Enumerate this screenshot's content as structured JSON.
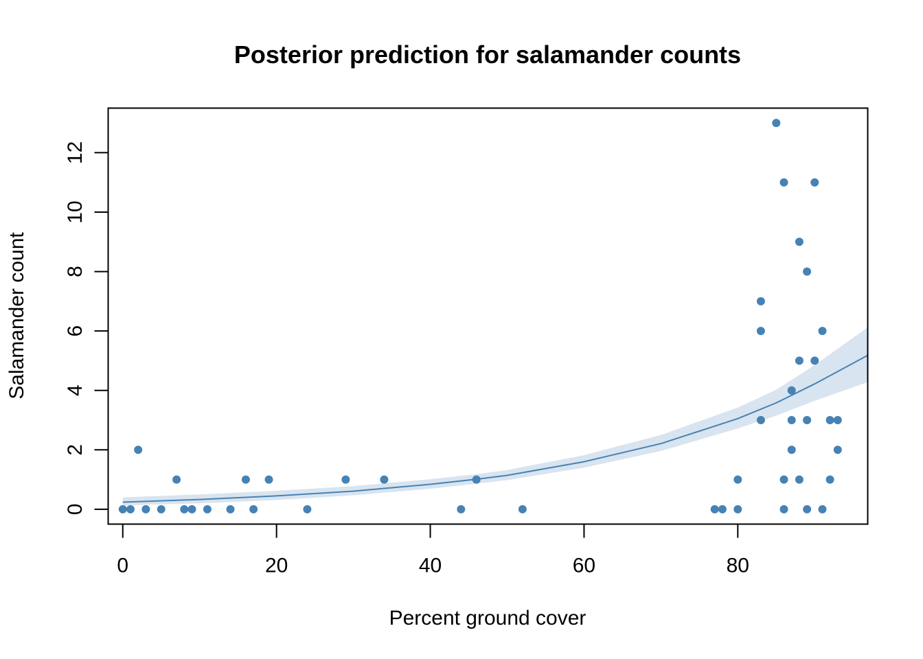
{
  "chart_data": {
    "type": "scatter",
    "title": "Posterior prediction for salamander counts",
    "xlabel": "Percent ground cover",
    "ylabel": "Salamander count",
    "xlim": [
      -1.9,
      96.9
    ],
    "ylim": [
      -0.5,
      13.5
    ],
    "xticks": [
      0,
      20,
      40,
      60,
      80
    ],
    "yticks": [
      0,
      2,
      4,
      6,
      8,
      10,
      12
    ],
    "grid": false,
    "colors": {
      "points": "#4682B4",
      "line": "#4682B4",
      "band": "#D8E4EF",
      "axes": "#000000"
    },
    "points": [
      {
        "x": 0,
        "y": 0
      },
      {
        "x": 1,
        "y": 0
      },
      {
        "x": 2,
        "y": 2
      },
      {
        "x": 3,
        "y": 0
      },
      {
        "x": 5,
        "y": 0
      },
      {
        "x": 7,
        "y": 1
      },
      {
        "x": 8,
        "y": 0
      },
      {
        "x": 9,
        "y": 0
      },
      {
        "x": 11,
        "y": 0
      },
      {
        "x": 14,
        "y": 0
      },
      {
        "x": 16,
        "y": 1
      },
      {
        "x": 17,
        "y": 0
      },
      {
        "x": 19,
        "y": 1
      },
      {
        "x": 24,
        "y": 0
      },
      {
        "x": 29,
        "y": 1
      },
      {
        "x": 34,
        "y": 1
      },
      {
        "x": 44,
        "y": 0
      },
      {
        "x": 46,
        "y": 1
      },
      {
        "x": 52,
        "y": 0
      },
      {
        "x": 77,
        "y": 0
      },
      {
        "x": 78,
        "y": 0
      },
      {
        "x": 80,
        "y": 1
      },
      {
        "x": 80,
        "y": 0
      },
      {
        "x": 83,
        "y": 7
      },
      {
        "x": 83,
        "y": 6
      },
      {
        "x": 83,
        "y": 3
      },
      {
        "x": 85,
        "y": 13
      },
      {
        "x": 86,
        "y": 11
      },
      {
        "x": 86,
        "y": 1
      },
      {
        "x": 86,
        "y": 0
      },
      {
        "x": 87,
        "y": 4
      },
      {
        "x": 87,
        "y": 3
      },
      {
        "x": 87,
        "y": 2
      },
      {
        "x": 88,
        "y": 9
      },
      {
        "x": 88,
        "y": 5
      },
      {
        "x": 88,
        "y": 1
      },
      {
        "x": 89,
        "y": 8
      },
      {
        "x": 89,
        "y": 3
      },
      {
        "x": 89,
        "y": 0
      },
      {
        "x": 90,
        "y": 11
      },
      {
        "x": 90,
        "y": 5
      },
      {
        "x": 91,
        "y": 6
      },
      {
        "x": 91,
        "y": 0
      },
      {
        "x": 92,
        "y": 3
      },
      {
        "x": 92,
        "y": 1
      },
      {
        "x": 93,
        "y": 3
      },
      {
        "x": 93,
        "y": 2
      }
    ],
    "curve": [
      {
        "x": 0,
        "mean": 0.24,
        "lower": 0.13,
        "upper": 0.4
      },
      {
        "x": 10,
        "mean": 0.33,
        "lower": 0.2,
        "upper": 0.5
      },
      {
        "x": 20,
        "mean": 0.45,
        "lower": 0.31,
        "upper": 0.62
      },
      {
        "x": 30,
        "mean": 0.61,
        "lower": 0.47,
        "upper": 0.78
      },
      {
        "x": 40,
        "mean": 0.84,
        "lower": 0.69,
        "upper": 1.01
      },
      {
        "x": 46,
        "mean": 1.01,
        "lower": 0.86,
        "upper": 1.18
      },
      {
        "x": 50,
        "mean": 1.14,
        "lower": 0.98,
        "upper": 1.32
      },
      {
        "x": 60,
        "mean": 1.6,
        "lower": 1.4,
        "upper": 1.82
      },
      {
        "x": 70,
        "mean": 2.21,
        "lower": 1.96,
        "upper": 2.5
      },
      {
        "x": 80,
        "mean": 3.05,
        "lower": 2.72,
        "upper": 3.42
      },
      {
        "x": 85,
        "mean": 3.58,
        "lower": 3.15,
        "upper": 4.02
      },
      {
        "x": 90,
        "mean": 4.22,
        "lower": 3.65,
        "upper": 4.85
      },
      {
        "x": 96.9,
        "mean": 5.18,
        "lower": 4.28,
        "upper": 6.12
      }
    ]
  }
}
